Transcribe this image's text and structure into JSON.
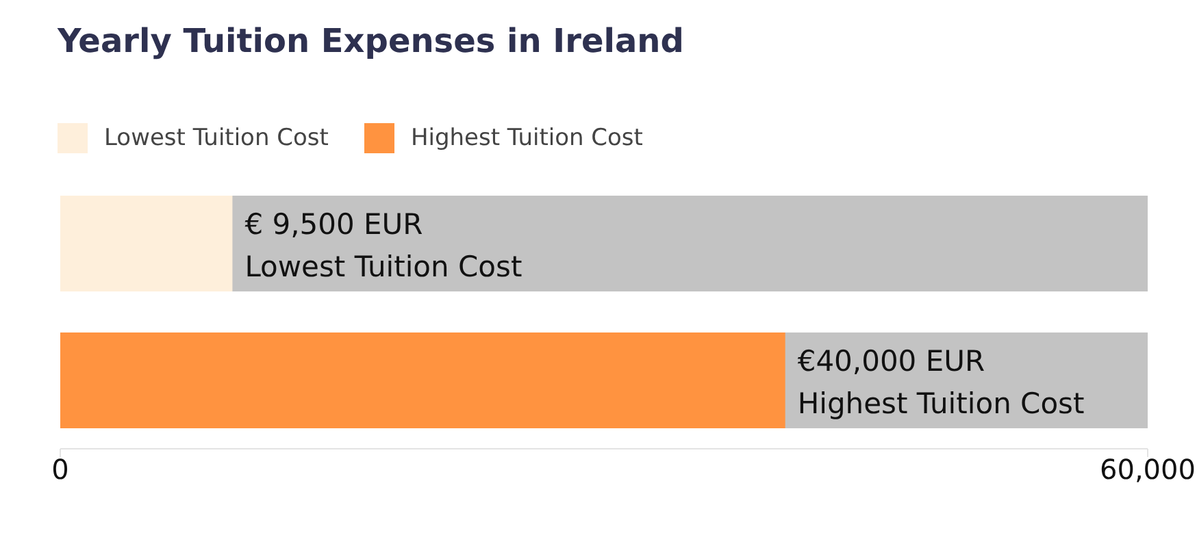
{
  "chart_data": {
    "type": "bar",
    "orientation": "horizontal",
    "stacked": true,
    "title": "Yearly Tuition Expenses in Ireland",
    "categories": [
      null,
      null
    ],
    "series": [
      {
        "name": "Lowest Tuition Cost",
        "color": "#feefdb",
        "values": [
          9500,
          null
        ],
        "value_labels": [
          "€ 9,500 EUR",
          null
        ]
      },
      {
        "name": "Highest Tuition Cost",
        "color": "#ff9340",
        "values": [
          null,
          40000
        ],
        "value_labels": [
          null,
          "€40,000 EUR"
        ]
      }
    ],
    "xlim": [
      0,
      60000
    ],
    "xticks": [
      0,
      {
        "value": 60000,
        "label": "60,000"
      }
    ],
    "legend": "top left"
  }
}
